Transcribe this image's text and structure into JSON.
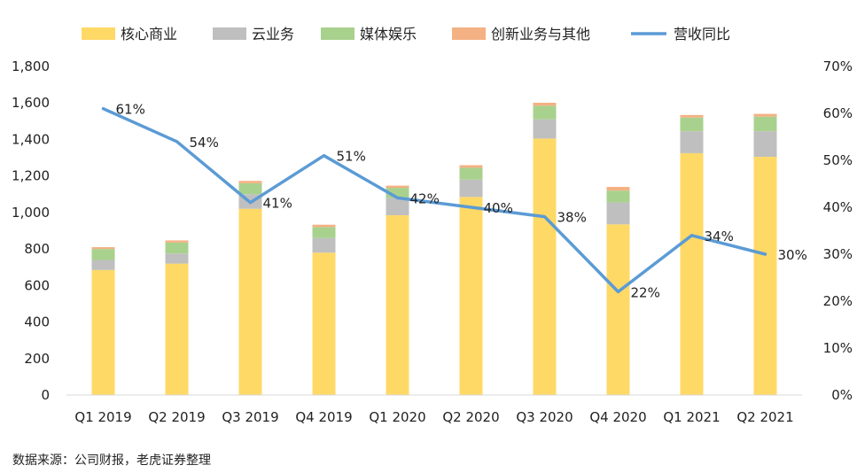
{
  "chart_data": {
    "type": "bar",
    "stacked": true,
    "categories": [
      "Q1  2019",
      "Q2  2019",
      "Q3  2019",
      "Q4  2019",
      "Q1  2020",
      "Q2  2020",
      "Q3  2020",
      "Q4  2020",
      "Q1  2021",
      "Q2  2021"
    ],
    "series": [
      {
        "name": "核心商业",
        "color": "#FFD966",
        "values": [
          685,
          720,
          1020,
          780,
          985,
          1085,
          1405,
          935,
          1325,
          1305
        ]
      },
      {
        "name": "云业务",
        "color": "#BFBFBF",
        "values": [
          55,
          55,
          80,
          80,
          95,
          95,
          105,
          120,
          120,
          140
        ]
      },
      {
        "name": "媒体娱乐",
        "color": "#A9D18E",
        "values": [
          60,
          60,
          60,
          60,
          55,
          65,
          75,
          65,
          75,
          80
        ]
      },
      {
        "name": "创新业务与其他",
        "color": "#F4B183",
        "values": [
          10,
          12,
          13,
          13,
          12,
          14,
          16,
          20,
          14,
          15
        ]
      }
    ],
    "line_series": {
      "name": "营收同比",
      "color": "#5B9BD5",
      "axis": "right",
      "values": [
        61,
        54,
        41,
        51,
        42,
        40,
        38,
        22,
        34,
        30
      ],
      "labels": [
        "61%",
        "54%",
        "41%",
        "51%",
        "42%",
        "40%",
        "38%",
        "22%",
        "34%",
        "30%"
      ]
    },
    "y_left": {
      "min": 0,
      "max": 1800,
      "step": 200,
      "tick_labels": [
        "0",
        "200",
        "400",
        "600",
        "800",
        "1,000",
        "1,200",
        "1,400",
        "1,600",
        "1,800"
      ]
    },
    "y_right": {
      "min": 0,
      "max": 70,
      "step": 10,
      "tick_labels": [
        "0%",
        "10%",
        "20%",
        "30%",
        "40%",
        "50%",
        "60%",
        "70%"
      ]
    },
    "legend_position": "top",
    "grid": false
  },
  "source_note": "数据来源：公司财报，老虎证券整理"
}
